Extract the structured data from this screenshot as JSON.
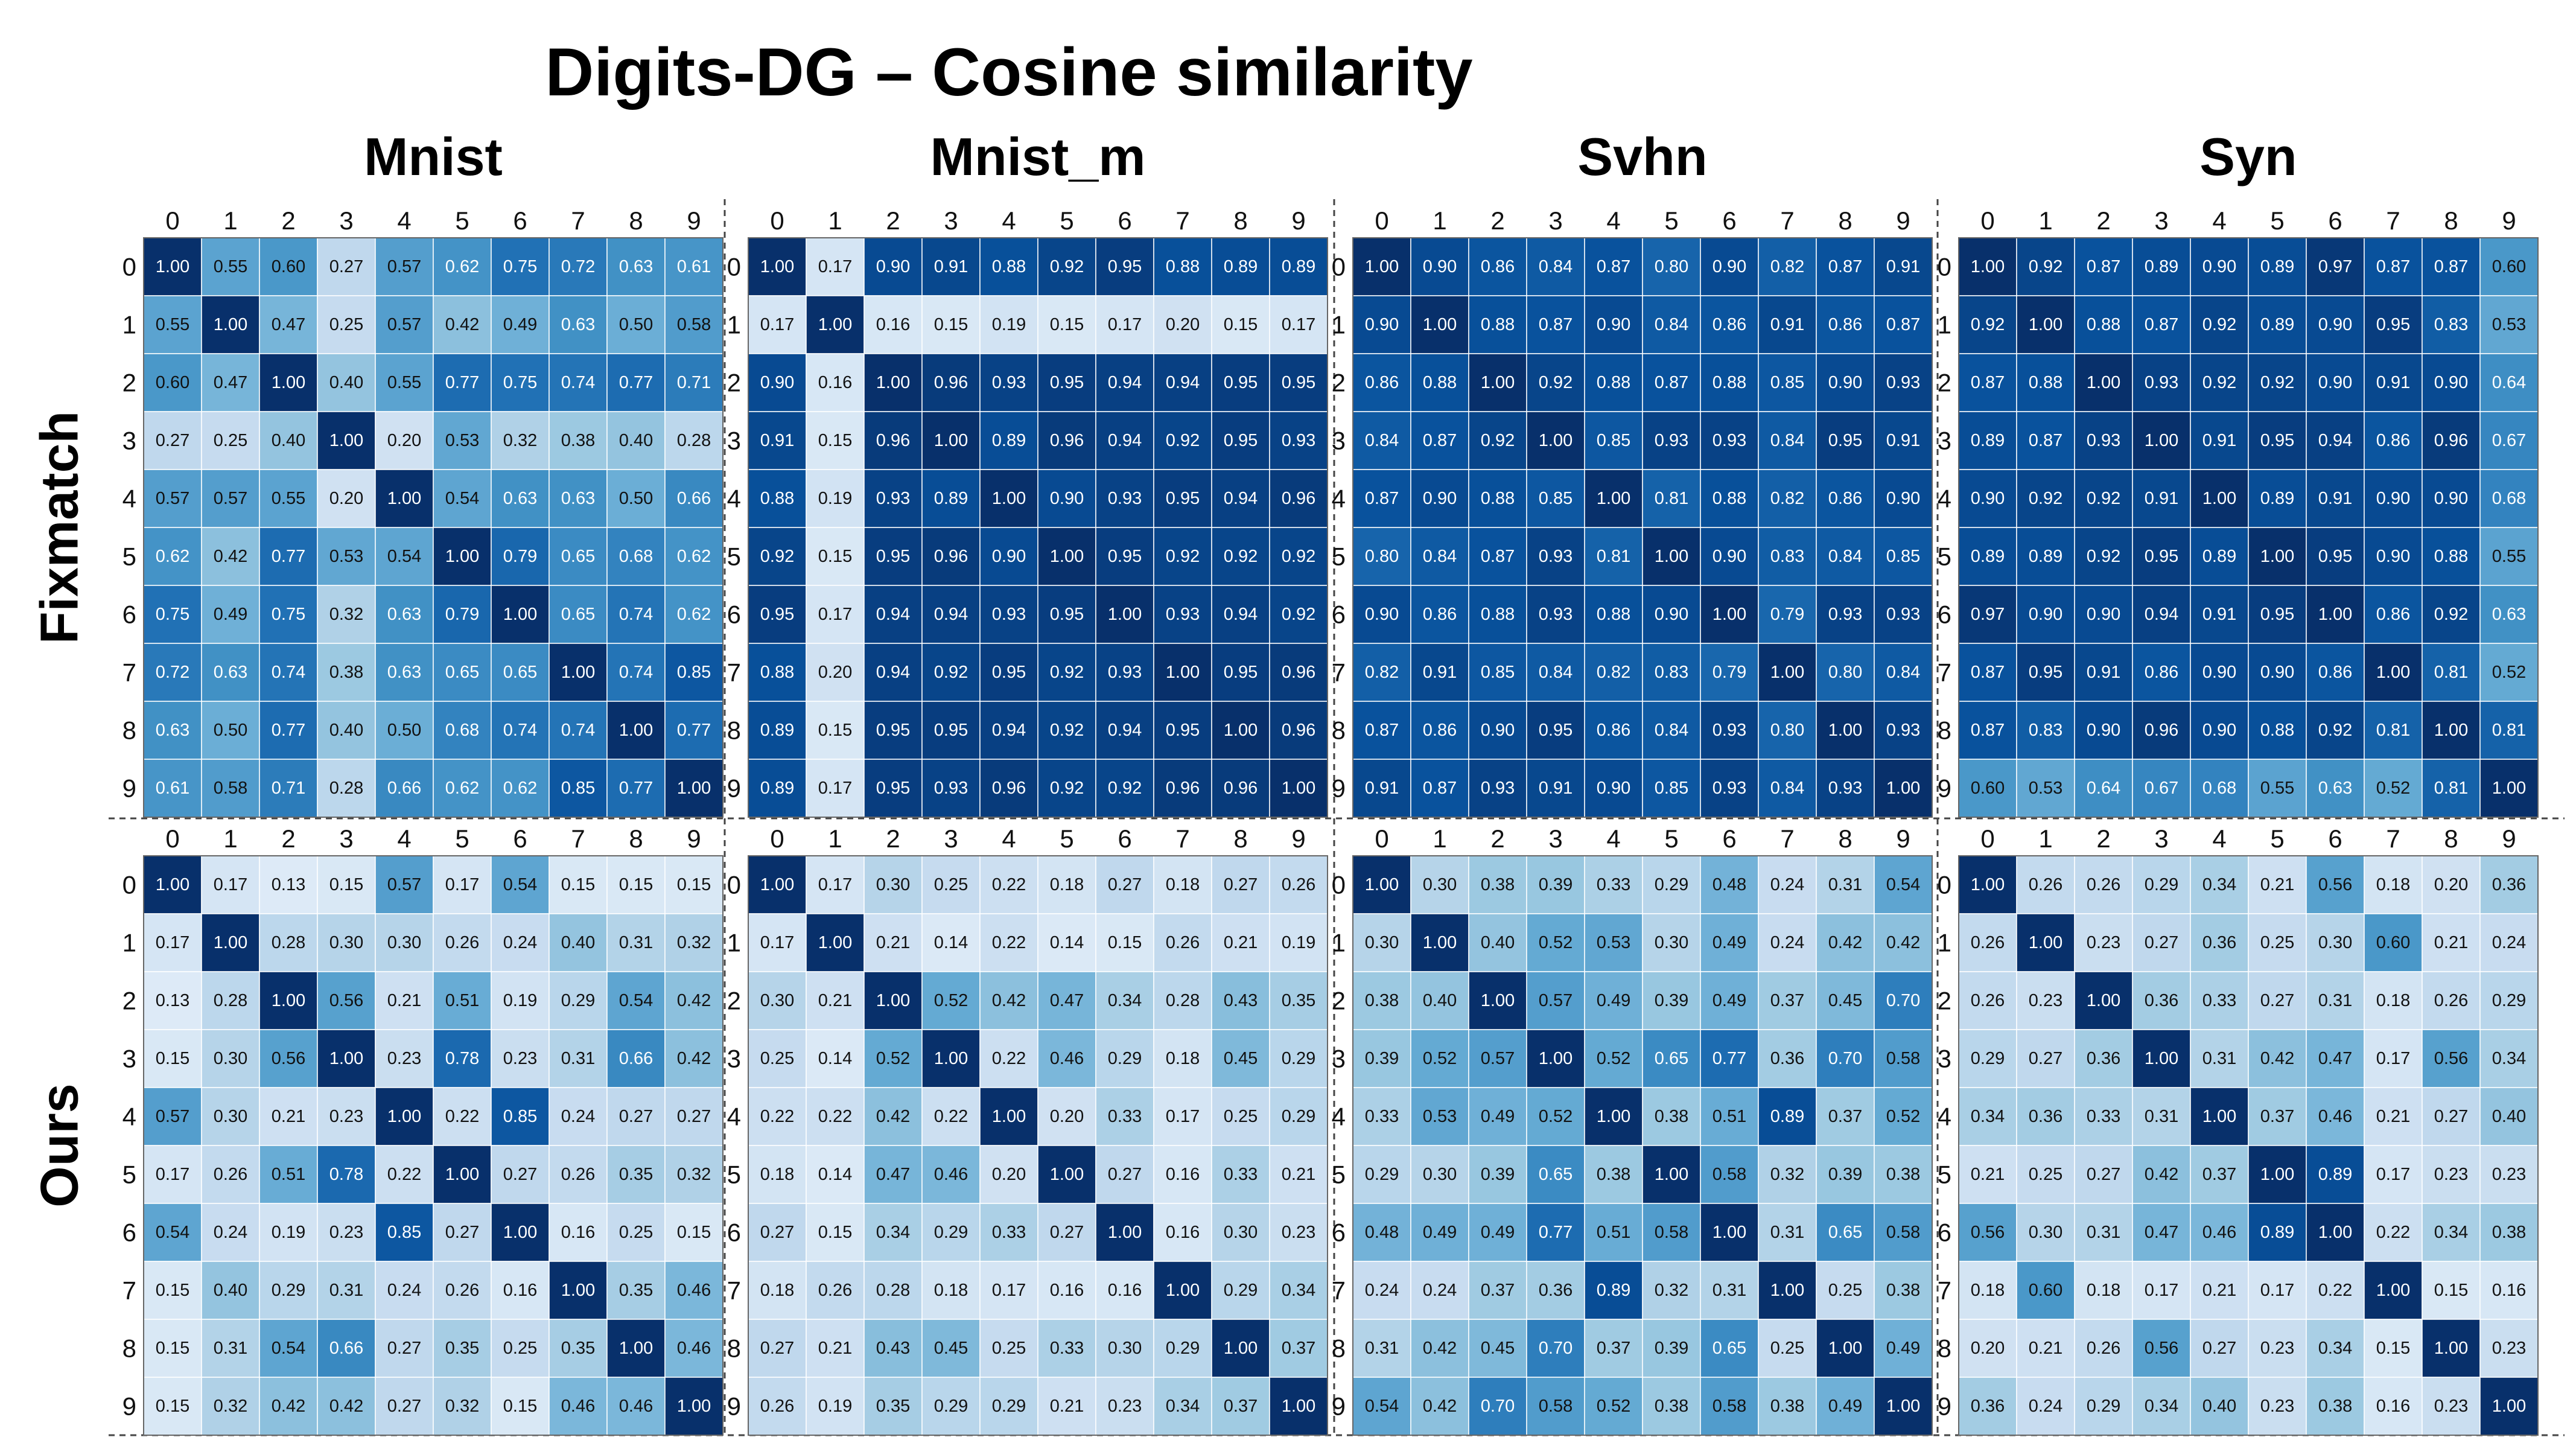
{
  "title": "Digits-DG  –  Cosine similarity",
  "chart_data": {
    "type": "heatmap",
    "title": "Digits-DG  –  Cosine similarity",
    "colormap": "Blues",
    "value_range": [
      0,
      1
    ],
    "column_titles": [
      "Mnist",
      "Mnist_m",
      "Svhn",
      "Syn"
    ],
    "row_titles": [
      "Fixmatch",
      "Ours"
    ],
    "tick_labels": [
      "0",
      "1",
      "2",
      "3",
      "4",
      "5",
      "6",
      "7",
      "8",
      "9"
    ],
    "matrices": [
      [
        [
          [
            1.0,
            0.55,
            0.6,
            0.27,
            0.57,
            0.62,
            0.75,
            0.72,
            0.63,
            0.61
          ],
          [
            0.55,
            1.0,
            0.47,
            0.25,
            0.57,
            0.42,
            0.49,
            0.63,
            0.5,
            0.58
          ],
          [
            0.6,
            0.47,
            1.0,
            0.4,
            0.55,
            0.77,
            0.75,
            0.74,
            0.77,
            0.71
          ],
          [
            0.27,
            0.25,
            0.4,
            1.0,
            0.2,
            0.53,
            0.32,
            0.38,
            0.4,
            0.28
          ],
          [
            0.57,
            0.57,
            0.55,
            0.2,
            1.0,
            0.54,
            0.63,
            0.63,
            0.5,
            0.66
          ],
          [
            0.62,
            0.42,
            0.77,
            0.53,
            0.54,
            1.0,
            0.79,
            0.65,
            0.68,
            0.62
          ],
          [
            0.75,
            0.49,
            0.75,
            0.32,
            0.63,
            0.79,
            1.0,
            0.65,
            0.74,
            0.62
          ],
          [
            0.72,
            0.63,
            0.74,
            0.38,
            0.63,
            0.65,
            0.65,
            1.0,
            0.74,
            0.85
          ],
          [
            0.63,
            0.5,
            0.77,
            0.4,
            0.5,
            0.68,
            0.74,
            0.74,
            1.0,
            0.77
          ],
          [
            0.61,
            0.58,
            0.71,
            0.28,
            0.66,
            0.62,
            0.62,
            0.85,
            0.77,
            1.0
          ]
        ],
        [
          [
            1.0,
            0.17,
            0.9,
            0.91,
            0.88,
            0.92,
            0.95,
            0.88,
            0.89,
            0.89
          ],
          [
            0.17,
            1.0,
            0.16,
            0.15,
            0.19,
            0.15,
            0.17,
            0.2,
            0.15,
            0.17
          ],
          [
            0.9,
            0.16,
            1.0,
            0.96,
            0.93,
            0.95,
            0.94,
            0.94,
            0.95,
            0.95
          ],
          [
            0.91,
            0.15,
            0.96,
            1.0,
            0.89,
            0.96,
            0.94,
            0.92,
            0.95,
            0.93
          ],
          [
            0.88,
            0.19,
            0.93,
            0.89,
            1.0,
            0.9,
            0.93,
            0.95,
            0.94,
            0.96
          ],
          [
            0.92,
            0.15,
            0.95,
            0.96,
            0.9,
            1.0,
            0.95,
            0.92,
            0.92,
            0.92
          ],
          [
            0.95,
            0.17,
            0.94,
            0.94,
            0.93,
            0.95,
            1.0,
            0.93,
            0.94,
            0.92
          ],
          [
            0.88,
            0.2,
            0.94,
            0.92,
            0.95,
            0.92,
            0.93,
            1.0,
            0.95,
            0.96
          ],
          [
            0.89,
            0.15,
            0.95,
            0.95,
            0.94,
            0.92,
            0.94,
            0.95,
            1.0,
            0.96
          ],
          [
            0.89,
            0.17,
            0.95,
            0.93,
            0.96,
            0.92,
            0.92,
            0.96,
            0.96,
            1.0
          ]
        ],
        [
          [
            1.0,
            0.9,
            0.86,
            0.84,
            0.87,
            0.8,
            0.9,
            0.82,
            0.87,
            0.91
          ],
          [
            0.9,
            1.0,
            0.88,
            0.87,
            0.9,
            0.84,
            0.86,
            0.91,
            0.86,
            0.87
          ],
          [
            0.86,
            0.88,
            1.0,
            0.92,
            0.88,
            0.87,
            0.88,
            0.85,
            0.9,
            0.93
          ],
          [
            0.84,
            0.87,
            0.92,
            1.0,
            0.85,
            0.93,
            0.93,
            0.84,
            0.95,
            0.91
          ],
          [
            0.87,
            0.9,
            0.88,
            0.85,
            1.0,
            0.81,
            0.88,
            0.82,
            0.86,
            0.9
          ],
          [
            0.8,
            0.84,
            0.87,
            0.93,
            0.81,
            1.0,
            0.9,
            0.83,
            0.84,
            0.85
          ],
          [
            0.9,
            0.86,
            0.88,
            0.93,
            0.88,
            0.9,
            1.0,
            0.79,
            0.93,
            0.93
          ],
          [
            0.82,
            0.91,
            0.85,
            0.84,
            0.82,
            0.83,
            0.79,
            1.0,
            0.8,
            0.84
          ],
          [
            0.87,
            0.86,
            0.9,
            0.95,
            0.86,
            0.84,
            0.93,
            0.8,
            1.0,
            0.93
          ],
          [
            0.91,
            0.87,
            0.93,
            0.91,
            0.9,
            0.85,
            0.93,
            0.84,
            0.93,
            1.0
          ]
        ],
        [
          [
            1.0,
            0.92,
            0.87,
            0.89,
            0.9,
            0.89,
            0.97,
            0.87,
            0.87,
            0.6
          ],
          [
            0.92,
            1.0,
            0.88,
            0.87,
            0.92,
            0.89,
            0.9,
            0.95,
            0.83,
            0.53
          ],
          [
            0.87,
            0.88,
            1.0,
            0.93,
            0.92,
            0.92,
            0.9,
            0.91,
            0.9,
            0.64
          ],
          [
            0.89,
            0.87,
            0.93,
            1.0,
            0.91,
            0.95,
            0.94,
            0.86,
            0.96,
            0.67
          ],
          [
            0.9,
            0.92,
            0.92,
            0.91,
            1.0,
            0.89,
            0.91,
            0.9,
            0.9,
            0.68
          ],
          [
            0.89,
            0.89,
            0.92,
            0.95,
            0.89,
            1.0,
            0.95,
            0.9,
            0.88,
            0.55
          ],
          [
            0.97,
            0.9,
            0.9,
            0.94,
            0.91,
            0.95,
            1.0,
            0.86,
            0.92,
            0.63
          ],
          [
            0.87,
            0.95,
            0.91,
            0.86,
            0.9,
            0.9,
            0.86,
            1.0,
            0.81,
            0.52
          ],
          [
            0.87,
            0.83,
            0.9,
            0.96,
            0.9,
            0.88,
            0.92,
            0.81,
            1.0,
            0.81
          ],
          [
            0.6,
            0.53,
            0.64,
            0.67,
            0.68,
            0.55,
            0.63,
            0.52,
            0.81,
            1.0
          ]
        ]
      ],
      [
        [
          [
            1.0,
            0.17,
            0.13,
            0.15,
            0.57,
            0.17,
            0.54,
            0.15,
            0.15,
            0.15
          ],
          [
            0.17,
            1.0,
            0.28,
            0.3,
            0.3,
            0.26,
            0.24,
            0.4,
            0.31,
            0.32
          ],
          [
            0.13,
            0.28,
            1.0,
            0.56,
            0.21,
            0.51,
            0.19,
            0.29,
            0.54,
            0.42
          ],
          [
            0.15,
            0.3,
            0.56,
            1.0,
            0.23,
            0.78,
            0.23,
            0.31,
            0.66,
            0.42
          ],
          [
            0.57,
            0.3,
            0.21,
            0.23,
            1.0,
            0.22,
            0.85,
            0.24,
            0.27,
            0.27
          ],
          [
            0.17,
            0.26,
            0.51,
            0.78,
            0.22,
            1.0,
            0.27,
            0.26,
            0.35,
            0.32
          ],
          [
            0.54,
            0.24,
            0.19,
            0.23,
            0.85,
            0.27,
            1.0,
            0.16,
            0.25,
            0.15
          ],
          [
            0.15,
            0.4,
            0.29,
            0.31,
            0.24,
            0.26,
            0.16,
            1.0,
            0.35,
            0.46
          ],
          [
            0.15,
            0.31,
            0.54,
            0.66,
            0.27,
            0.35,
            0.25,
            0.35,
            1.0,
            0.46
          ],
          [
            0.15,
            0.32,
            0.42,
            0.42,
            0.27,
            0.32,
            0.15,
            0.46,
            0.46,
            1.0
          ]
        ],
        [
          [
            1.0,
            0.17,
            0.3,
            0.25,
            0.22,
            0.18,
            0.27,
            0.18,
            0.27,
            0.26
          ],
          [
            0.17,
            1.0,
            0.21,
            0.14,
            0.22,
            0.14,
            0.15,
            0.26,
            0.21,
            0.19
          ],
          [
            0.3,
            0.21,
            1.0,
            0.52,
            0.42,
            0.47,
            0.34,
            0.28,
            0.43,
            0.35
          ],
          [
            0.25,
            0.14,
            0.52,
            1.0,
            0.22,
            0.46,
            0.29,
            0.18,
            0.45,
            0.29
          ],
          [
            0.22,
            0.22,
            0.42,
            0.22,
            1.0,
            0.2,
            0.33,
            0.17,
            0.25,
            0.29
          ],
          [
            0.18,
            0.14,
            0.47,
            0.46,
            0.2,
            1.0,
            0.27,
            0.16,
            0.33,
            0.21
          ],
          [
            0.27,
            0.15,
            0.34,
            0.29,
            0.33,
            0.27,
            1.0,
            0.16,
            0.3,
            0.23
          ],
          [
            0.18,
            0.26,
            0.28,
            0.18,
            0.17,
            0.16,
            0.16,
            1.0,
            0.29,
            0.34
          ],
          [
            0.27,
            0.21,
            0.43,
            0.45,
            0.25,
            0.33,
            0.3,
            0.29,
            1.0,
            0.37
          ],
          [
            0.26,
            0.19,
            0.35,
            0.29,
            0.29,
            0.21,
            0.23,
            0.34,
            0.37,
            1.0
          ]
        ],
        [
          [
            1.0,
            0.3,
            0.38,
            0.39,
            0.33,
            0.29,
            0.48,
            0.24,
            0.31,
            0.54
          ],
          [
            0.3,
            1.0,
            0.4,
            0.52,
            0.53,
            0.3,
            0.49,
            0.24,
            0.42,
            0.42
          ],
          [
            0.38,
            0.4,
            1.0,
            0.57,
            0.49,
            0.39,
            0.49,
            0.37,
            0.45,
            0.7
          ],
          [
            0.39,
            0.52,
            0.57,
            1.0,
            0.52,
            0.65,
            0.77,
            0.36,
            0.7,
            0.58
          ],
          [
            0.33,
            0.53,
            0.49,
            0.52,
            1.0,
            0.38,
            0.51,
            0.89,
            0.37,
            0.52
          ],
          [
            0.29,
            0.3,
            0.39,
            0.65,
            0.38,
            1.0,
            0.58,
            0.32,
            0.39,
            0.38
          ],
          [
            0.48,
            0.49,
            0.49,
            0.77,
            0.51,
            0.58,
            1.0,
            0.31,
            0.65,
            0.58
          ],
          [
            0.24,
            0.24,
            0.37,
            0.36,
            0.89,
            0.32,
            0.31,
            1.0,
            0.25,
            0.38
          ],
          [
            0.31,
            0.42,
            0.45,
            0.7,
            0.37,
            0.39,
            0.65,
            0.25,
            1.0,
            0.49
          ],
          [
            0.54,
            0.42,
            0.7,
            0.58,
            0.52,
            0.38,
            0.58,
            0.38,
            0.49,
            1.0
          ]
        ],
        [
          [
            1.0,
            0.26,
            0.26,
            0.29,
            0.34,
            0.21,
            0.56,
            0.18,
            0.2,
            0.36
          ],
          [
            0.26,
            1.0,
            0.23,
            0.27,
            0.36,
            0.25,
            0.3,
            0.6,
            0.21,
            0.24
          ],
          [
            0.26,
            0.23,
            1.0,
            0.36,
            0.33,
            0.27,
            0.31,
            0.18,
            0.26,
            0.29
          ],
          [
            0.29,
            0.27,
            0.36,
            1.0,
            0.31,
            0.42,
            0.47,
            0.17,
            0.56,
            0.34
          ],
          [
            0.34,
            0.36,
            0.33,
            0.31,
            1.0,
            0.37,
            0.46,
            0.21,
            0.27,
            0.4
          ],
          [
            0.21,
            0.25,
            0.27,
            0.42,
            0.37,
            1.0,
            0.89,
            0.17,
            0.23,
            0.23
          ],
          [
            0.56,
            0.3,
            0.31,
            0.47,
            0.46,
            0.89,
            1.0,
            0.22,
            0.34,
            0.38
          ],
          [
            0.18,
            0.6,
            0.18,
            0.17,
            0.21,
            0.17,
            0.22,
            1.0,
            0.15,
            0.16
          ],
          [
            0.2,
            0.21,
            0.26,
            0.56,
            0.27,
            0.23,
            0.34,
            0.15,
            1.0,
            0.23
          ],
          [
            0.36,
            0.24,
            0.29,
            0.34,
            0.4,
            0.23,
            0.38,
            0.16,
            0.23,
            1.0
          ]
        ]
      ]
    ]
  }
}
